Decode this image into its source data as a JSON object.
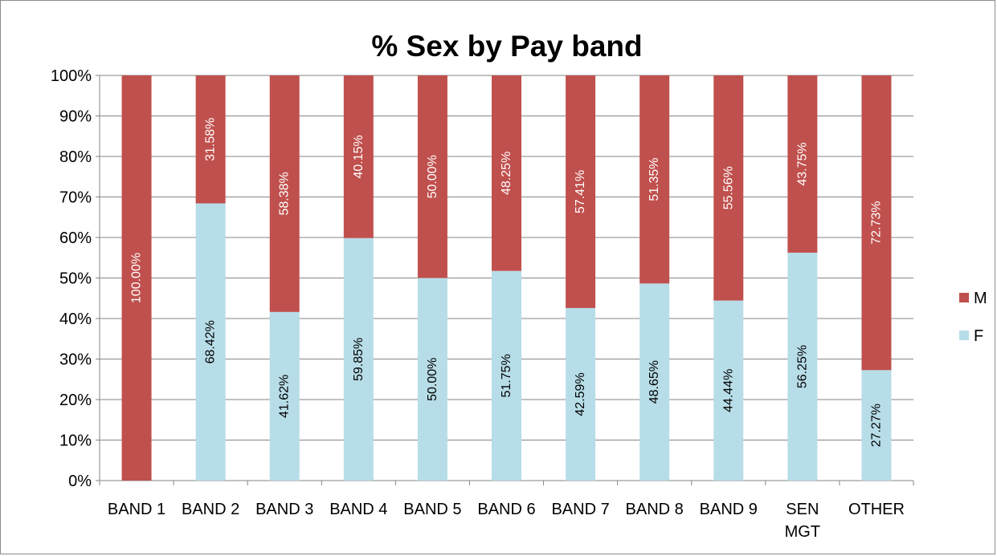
{
  "chart_data": {
    "type": "bar",
    "stacked": true,
    "percent_stacked": true,
    "title": "% Sex by Pay band",
    "xlabel": "",
    "ylabel": "",
    "ylim": [
      0,
      100
    ],
    "y_ticks": [
      "0%",
      "10%",
      "20%",
      "30%",
      "40%",
      "50%",
      "60%",
      "70%",
      "80%",
      "90%",
      "100%"
    ],
    "grid": true,
    "legend_position": "right",
    "categories": [
      [
        "BAND 1"
      ],
      [
        "BAND 2"
      ],
      [
        "BAND 3"
      ],
      [
        "BAND 4"
      ],
      [
        "BAND 5"
      ],
      [
        "BAND 6"
      ],
      [
        "BAND 7"
      ],
      [
        "BAND 8"
      ],
      [
        "BAND 9"
      ],
      [
        "SEN",
        "MGT"
      ],
      [
        "OTHER"
      ]
    ],
    "series": [
      {
        "name": "F",
        "color": "#b7dde8",
        "values": [
          0,
          68.42,
          41.62,
          59.85,
          50.0,
          51.75,
          42.59,
          48.65,
          44.44,
          56.25,
          27.27
        ],
        "labels": [
          "",
          "68.42%",
          "41.62%",
          "59.85%",
          "50.00%",
          "51.75%",
          "42.59%",
          "48.65%",
          "44.44%",
          "56.25%",
          "27.27%"
        ]
      },
      {
        "name": "M",
        "color": "#c0504d",
        "values": [
          100.0,
          31.58,
          58.38,
          40.15,
          50.0,
          48.25,
          57.41,
          51.35,
          55.56,
          43.75,
          72.73
        ],
        "labels": [
          "100.00%",
          "31.58%",
          "58.38%",
          "40.15%",
          "50.00%",
          "48.25%",
          "57.41%",
          "51.35%",
          "55.56%",
          "43.75%",
          "72.73%"
        ]
      }
    ],
    "legend_order": [
      "M",
      "F"
    ]
  }
}
